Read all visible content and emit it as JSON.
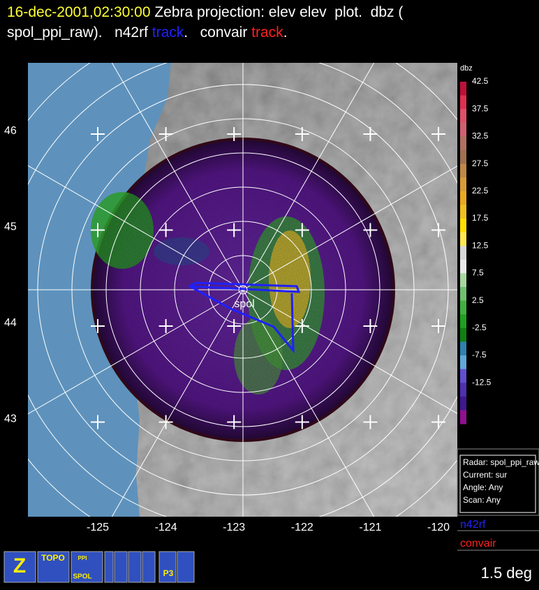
{
  "title": {
    "line1": [
      {
        "text": "16-dec-2001,02:30:00",
        "color": "#ffff33"
      },
      {
        "text": " Zebra projection: elev elev  plot.  dbz (",
        "color": "#ffffff"
      }
    ],
    "line2": [
      {
        "text": "spol_ppi_raw).   n42rf ",
        "color": "#ffffff"
      },
      {
        "text": "track",
        "color": "#2222ff"
      },
      {
        "text": ".   convair ",
        "color": "#ffffff"
      },
      {
        "text": "track",
        "color": "#ff2020"
      },
      {
        "text": ".",
        "color": "#ffffff"
      }
    ]
  },
  "map": {
    "lat_labels": [
      "46",
      "45",
      "44",
      "43"
    ],
    "lon_labels": [
      "-125",
      "-124",
      "-123",
      "-122",
      "-121",
      "-120"
    ],
    "station": "spol"
  },
  "colorbar": {
    "title": "dbz",
    "labels": [
      "42.5",
      "37.5",
      "32.5",
      "27.5",
      "22.5",
      "17.5",
      "12.5",
      "7.5",
      "2.5",
      "-2.5",
      "-7.5",
      "-12.5"
    ],
    "colors": [
      "#c0103a",
      "#e03050",
      "#e0506a",
      "#d06070",
      "#b07060",
      "#a07050",
      "#c08848",
      "#d89a38",
      "#e8aa20",
      "#f0c020",
      "#ffe000",
      "#ffe850",
      "#d8d8d8",
      "#e8e8e8",
      "#a8d8a0",
      "#70c070",
      "#40b040",
      "#20a020",
      "#108010",
      "#3080b0",
      "#60a8d8",
      "#6050d0",
      "#5030b0",
      "#401890",
      "#901090"
    ]
  },
  "info": [
    "Radar: spol_ppi_raw",
    "Current: sur",
    "Angle: Any",
    "Scan: Any"
  ],
  "legend": [
    {
      "name": "n42rf",
      "color": "#2222ff"
    },
    {
      "name": "convair",
      "color": "#ff2020"
    }
  ],
  "status": "1.5 deg",
  "icons": [
    "Z",
    "TOPO",
    "PPI",
    "SPOL",
    "P3"
  ]
}
